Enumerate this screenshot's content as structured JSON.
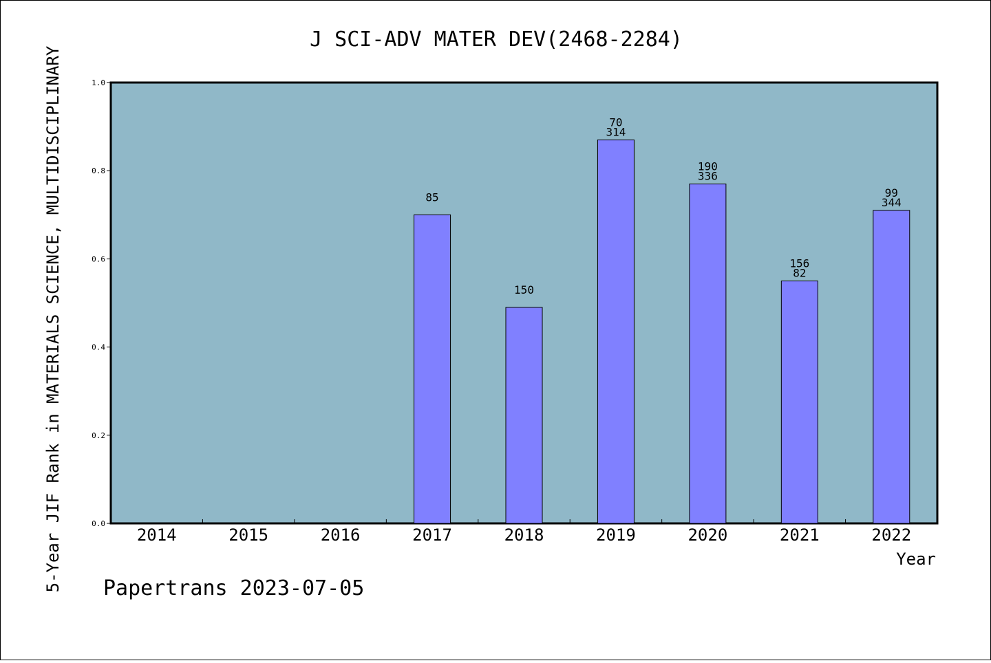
{
  "chart_data": {
    "type": "bar",
    "title": "J SCI-ADV MATER DEV(2468-2284)",
    "xlabel": "Year",
    "ylabel": "5-Year JIF Rank in MATERIALS SCIENCE, MULTIDISCIPLINARY",
    "ylim": [
      0,
      1.0
    ],
    "yticks": [
      "0.0",
      "0.2",
      "0.4",
      "0.6",
      "0.8",
      "1.0"
    ],
    "categories": [
      "2014",
      "2015",
      "2016",
      "2017",
      "2018",
      "2019",
      "2020",
      "2021",
      "2022"
    ],
    "values": [
      null,
      null,
      null,
      0.7,
      0.49,
      0.87,
      0.77,
      0.55,
      0.71
    ],
    "labels": [
      [],
      [],
      [],
      [
        "85"
      ],
      [
        "150"
      ],
      [
        "70",
        "314"
      ],
      [
        "190",
        "336"
      ],
      [
        "156",
        "82"
      ],
      [
        "99",
        "344"
      ]
    ],
    "grid": false,
    "colors": {
      "plot_background": "#90b8c8",
      "bar_fill": "#8080ff",
      "bar_stroke": "#000000"
    }
  },
  "footer": {
    "text": "Papertrans 2023-07-05"
  }
}
